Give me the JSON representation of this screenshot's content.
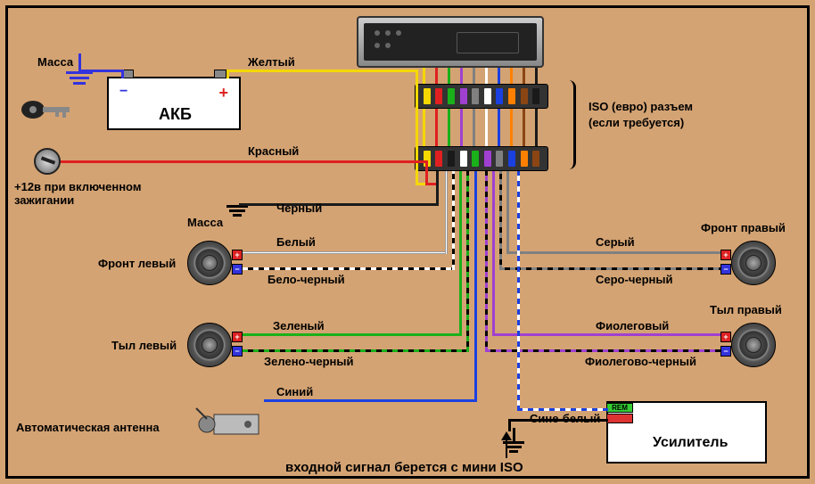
{
  "labels": {
    "mass_top": "Масса",
    "yellow": "Желтый",
    "akb": "АКБ",
    "red": "Красный",
    "ignition": "+12в при включенном\nзажигании",
    "mass_mid": "Масса",
    "black": "Черный",
    "white": "Белый",
    "front_left": "Фронт левый",
    "white_black": "Бело-черный",
    "rear_left": "Тыл левый",
    "green": "Зеленый",
    "green_black": "Зелено-черный",
    "blue": "Синий",
    "auto_antenna": "Автоматическая антенна",
    "input_signal": "входной сигнал берется с мини ISO",
    "iso_euro": "ISO (евро) разъем",
    "iso_req": "(если требуется)",
    "front_right": "Фронт правый",
    "grey": "Серый",
    "grey_black": "Серо-черный",
    "rear_right": "Тыл правый",
    "violet": "Фиолеговый",
    "violet_black": "Фиолегово-черный",
    "blue_white": "Сине-белый",
    "rem": "REM",
    "amplifier": "Усилитель"
  },
  "colors": {
    "yellow": "#f5d800",
    "red": "#e02020",
    "black": "#1a1a1a",
    "white": "#ffffff",
    "green": "#1ab01a",
    "blue": "#1a40e0",
    "grey": "#808080",
    "violet": "#a040d0",
    "orange": "#ff8000",
    "brown": "#8b4513",
    "bg": "#d4a373"
  },
  "iso_top_colors": [
    "#f5d800",
    "#e02020",
    "#1ab01a",
    "#a040d0",
    "#808080",
    "#ffffff",
    "#1a40e0",
    "#ff8000",
    "#8b4513",
    "#1a1a1a"
  ],
  "iso_bot_colors": [
    "#f5d800",
    "#e02020",
    "#1a1a1a",
    "#ffffff",
    "#1ab01a",
    "#a040d0",
    "#808080",
    "#1a40e0",
    "#ff8000",
    "#8b4513"
  ],
  "akb_plus": "+",
  "akb_minus": "−"
}
